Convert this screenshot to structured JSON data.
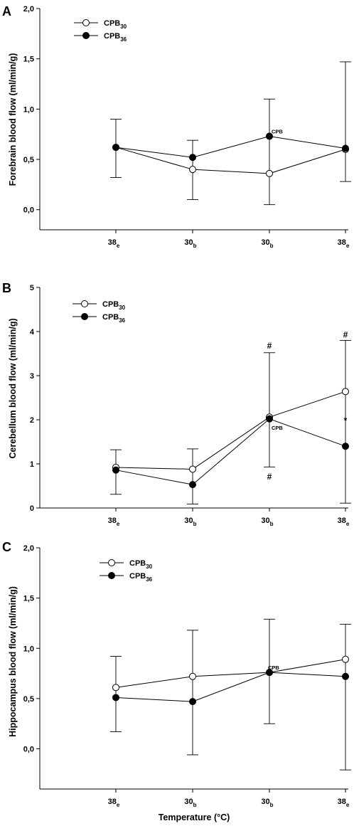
{
  "colors": {
    "open_marker_fill": "#ffffff",
    "filled_marker_fill": "#000000",
    "ink": "#000000"
  },
  "xlabel": "Temperature (°C)",
  "chart_data": [
    {
      "type": "line",
      "panel": "A",
      "ylabel": "Forebrain blood flow (ml/min/g)",
      "ylim": [
        -0.2,
        2.0
      ],
      "yticks": [
        0.0,
        0.5,
        1.0,
        1.5,
        2.0
      ],
      "ytick_labels": [
        "0,0",
        "0,5",
        "1,0",
        "1,5",
        "2,0"
      ],
      "categories": [
        {
          "main": "38",
          "sub": "e"
        },
        {
          "main": "30",
          "sub": "b"
        },
        {
          "main": "30",
          "sub": "b"
        },
        {
          "main": "38",
          "sub": "e"
        }
      ],
      "legend": {
        "position": "top-left"
      },
      "series": [
        {
          "name": "CPB",
          "name_sub": "30",
          "marker": "open",
          "values": [
            0.62,
            0.4,
            0.36,
            0.6
          ],
          "err_upper": [
            0.9,
            0.69,
            1.1,
            1.47
          ],
          "err_lower": [
            0.32,
            0.1,
            0.05,
            0.28
          ]
        },
        {
          "name": "CPB",
          "name_sub": "36",
          "marker": "filled",
          "values": [
            0.62,
            0.52,
            0.73,
            0.61
          ],
          "err_upper": [
            0.9,
            0.69,
            1.1,
            1.47
          ],
          "err_lower": [
            0.32,
            0.1,
            0.05,
            0.28
          ]
        }
      ],
      "annotations": [
        {
          "text": "CPB",
          "category_index": 2,
          "y": 0.78,
          "dx": 3,
          "size": "small",
          "anchor": "start"
        }
      ]
    },
    {
      "type": "line",
      "panel": "B",
      "ylabel": "Cerebellum blood flow (ml/min/g)",
      "ylim": [
        0,
        5
      ],
      "yticks": [
        0,
        1,
        2,
        3,
        4,
        5
      ],
      "ytick_labels": [
        "0",
        "1",
        "2",
        "3",
        "4",
        "5"
      ],
      "categories": [
        {
          "main": "38",
          "sub": "e"
        },
        {
          "main": "30",
          "sub": "b"
        },
        {
          "main": "30",
          "sub": "b"
        },
        {
          "main": "38",
          "sub": "e"
        }
      ],
      "legend": {
        "position": "top-left"
      },
      "series": [
        {
          "name": "CPB",
          "name_sub": "30",
          "marker": "open",
          "values": [
            0.92,
            0.88,
            2.06,
            2.64
          ],
          "err_upper": [
            1.32,
            1.34,
            3.52,
            3.8
          ],
          "err_lower": [
            0.31,
            0.09,
            0.93,
            0.11
          ]
        },
        {
          "name": "CPB",
          "name_sub": "36",
          "marker": "filled",
          "values": [
            0.86,
            0.53,
            2.02,
            1.4
          ],
          "err_upper": [
            1.32,
            1.34,
            3.52,
            3.8
          ],
          "err_lower": [
            0.31,
            0.09,
            0.93,
            0.11
          ]
        }
      ],
      "annotations": [
        {
          "text": "#",
          "category_index": 2,
          "y": 3.68,
          "dx": 0,
          "size": "sym",
          "anchor": "middle"
        },
        {
          "text": "#",
          "category_index": 2,
          "y": 0.71,
          "dx": 0,
          "size": "sym",
          "anchor": "middle"
        },
        {
          "text": "#",
          "category_index": 3,
          "y": 3.93,
          "dx": 0,
          "size": "sym",
          "anchor": "middle"
        },
        {
          "text": "*",
          "category_index": 3,
          "y": 1.98,
          "dx": 0,
          "size": "sym",
          "anchor": "middle"
        },
        {
          "text": "CPB",
          "category_index": 2,
          "y": 1.82,
          "dx": 3,
          "size": "small",
          "anchor": "start"
        }
      ]
    },
    {
      "type": "line",
      "panel": "C",
      "ylabel": "Hippocampus blood flow (ml/min/g)",
      "ylim": [
        -0.4,
        2.0
      ],
      "yticks": [
        0.0,
        0.5,
        1.0,
        1.5,
        2.0
      ],
      "ytick_labels": [
        "0,0",
        "0,5",
        "1,0",
        "1,5",
        "2,0"
      ],
      "categories": [
        {
          "main": "38",
          "sub": "e"
        },
        {
          "main": "30",
          "sub": "b"
        },
        {
          "main": "30",
          "sub": "b"
        },
        {
          "main": "38",
          "sub": "e"
        }
      ],
      "legend": {
        "position": "top-left"
      },
      "series": [
        {
          "name": "CPB",
          "name_sub": "30",
          "marker": "open",
          "values": [
            0.61,
            0.72,
            0.76,
            0.89
          ],
          "err_upper": [
            0.92,
            1.18,
            1.29,
            1.24
          ],
          "err_lower": [
            0.17,
            -0.06,
            0.25,
            -0.21
          ]
        },
        {
          "name": "CPB",
          "name_sub": "36",
          "marker": "filled",
          "values": [
            0.51,
            0.47,
            0.76,
            0.72
          ],
          "err_upper": [
            0.92,
            1.18,
            1.29,
            1.24
          ],
          "err_lower": [
            0.17,
            -0.06,
            0.25,
            -0.21
          ]
        }
      ],
      "annotations": [
        {
          "text": "CPB",
          "category_index": 2,
          "y": 0.81,
          "dx": -2,
          "size": "small",
          "anchor": "start"
        }
      ]
    }
  ]
}
